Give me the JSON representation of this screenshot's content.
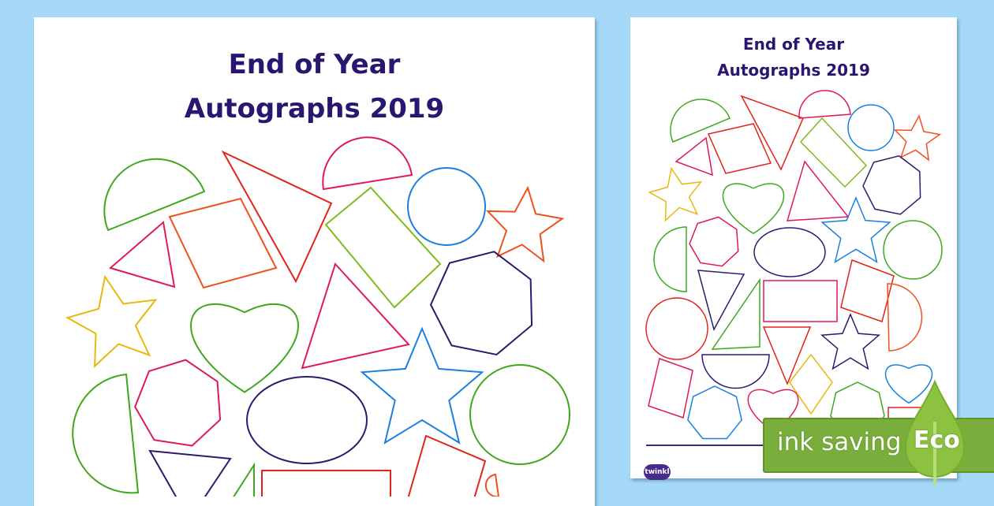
{
  "left_sheet": {
    "title_line1": "End of Year",
    "title_line2": "Autographs 2019"
  },
  "right_sheet": {
    "title_line1": "End of Year",
    "title_line2": "Autographs 2019",
    "logo": "twinkl"
  },
  "badge": {
    "text": "ink saving",
    "label": "Eco",
    "color": "#7aae3c"
  },
  "colors": {
    "background": "#a6d9f7",
    "title": "#2a1670"
  }
}
